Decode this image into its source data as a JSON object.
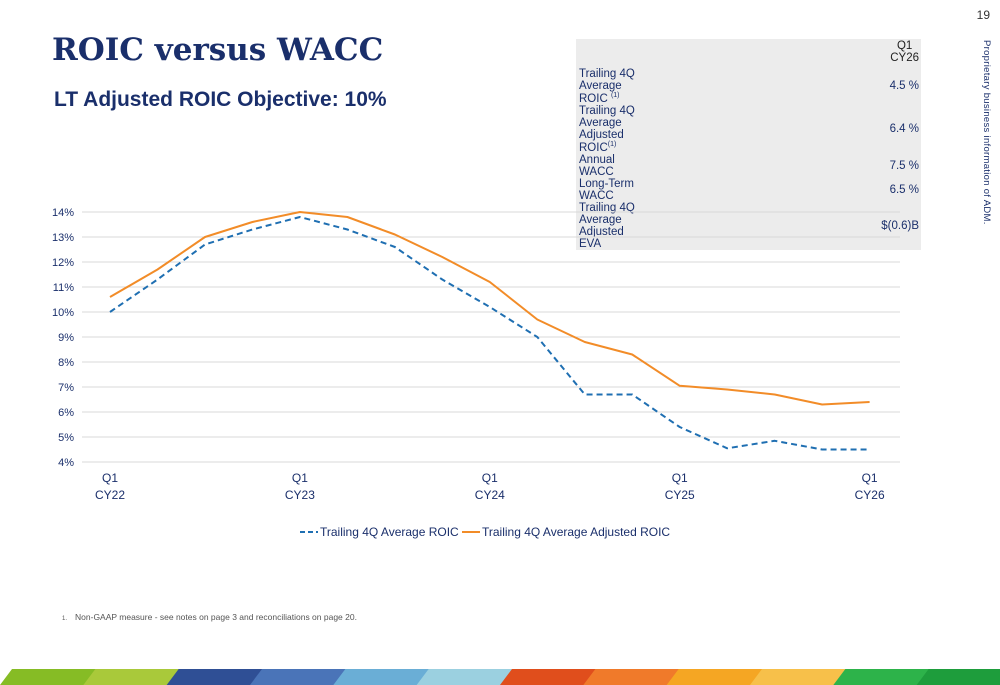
{
  "page_number": "19",
  "side_note": "Proprietary business information of ADM.",
  "title": "ROIC versus WACC",
  "subtitle": "LT Adjusted ROIC Objective: 10%",
  "table": {
    "header_line1": "Q1",
    "header_line2": "CY26",
    "rows": [
      {
        "label": "Trailing 4Q Average ROIC",
        "sup": "(1)",
        "value": "4.5 %"
      },
      {
        "label": "Trailing 4Q Average Adjusted ROIC",
        "sup": "(1)",
        "value": "6.4 %"
      },
      {
        "label": "Annual WACC",
        "sup": "",
        "value": "7.5 %"
      },
      {
        "label": "Long-Term WACC",
        "sup": "",
        "value": "6.5 %"
      },
      {
        "label": "Trailing 4Q Average Adjusted EVA",
        "sup": "",
        "value": "$(0.6)B"
      }
    ]
  },
  "chart_data": {
    "type": "line",
    "x_tick_labels": [
      {
        "line1": "Q1",
        "line2": "CY22"
      },
      {
        "line1": "Q1",
        "line2": "CY23"
      },
      {
        "line1": "Q1",
        "line2": "CY24"
      },
      {
        "line1": "Q1",
        "line2": "CY25"
      },
      {
        "line1": "Q1",
        "line2": "CY26"
      }
    ],
    "y_ticks": [
      "4%",
      "5%",
      "6%",
      "7%",
      "8%",
      "9%",
      "10%",
      "11%",
      "12%",
      "13%",
      "14%"
    ],
    "ylim": [
      4,
      14
    ],
    "grid": true,
    "legend_position": "bottom",
    "series": [
      {
        "name": "Trailing 4Q Average ROIC",
        "color": "#1f6fb2",
        "style": "dashed",
        "values": [
          10.0,
          11.3,
          12.7,
          13.3,
          13.8,
          13.3,
          12.6,
          11.3,
          10.2,
          9.0,
          6.7,
          6.7,
          5.4,
          4.55,
          4.85,
          4.5,
          4.5
        ]
      },
      {
        "name": "Trailing 4Q Average Adjusted ROIC",
        "color": "#f28c28",
        "style": "solid",
        "values": [
          10.6,
          11.7,
          13.0,
          13.6,
          14.0,
          13.8,
          13.1,
          12.2,
          11.2,
          9.7,
          8.8,
          8.3,
          7.05,
          6.9,
          6.7,
          6.3,
          6.4
        ]
      }
    ]
  },
  "footnote": {
    "number": "1.",
    "text": "Non-GAAP measure - see notes on page 3 and reconciliations on page 20."
  },
  "bottom_bar_colors": [
    "#86bc25",
    "#a9c93a",
    "#2f4f95",
    "#4a74b8",
    "#6aaed6",
    "#9bd0e0",
    "#e04e1c",
    "#f07a2a",
    "#f5a623",
    "#f7c04a",
    "#2db34a",
    "#1e9d3c"
  ]
}
